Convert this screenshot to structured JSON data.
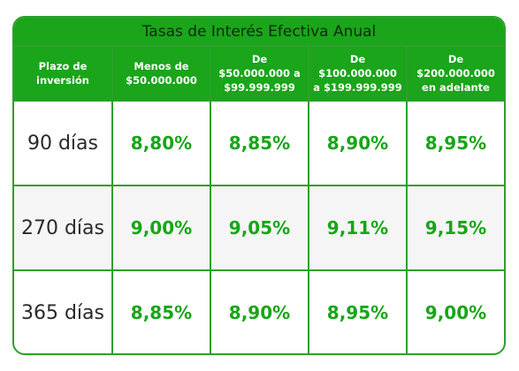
{
  "title": "Tasas de Interés Efectiva Anual",
  "headers": [
    {
      "line1": "Plazo de",
      "line2": "inversión",
      "line3": ""
    },
    {
      "line1": "Menos de",
      "line2": "$50.000.000",
      "line3": ""
    },
    {
      "line1": "De",
      "line2": "$50.000.000 a",
      "line3": "$99.999.999"
    },
    {
      "line1": "De",
      "line2": "$100.000.000",
      "line3": "a $199.999.999"
    },
    {
      "line1": "De",
      "line2": "$200.000.000",
      "line3": "en adelante"
    }
  ],
  "rows": [
    {
      "term": "90 días",
      "rates": [
        "8,80%",
        "8,85%",
        "8,90%",
        "8,95%"
      ]
    },
    {
      "term": "270 días",
      "rates": [
        "9,00%",
        "9,05%",
        "9,11%",
        "9,15%"
      ]
    },
    {
      "term": "365 días",
      "rates": [
        "8,85%",
        "8,90%",
        "8,95%",
        "9,00%"
      ]
    }
  ],
  "colors": {
    "header_bg": "#1aa51a",
    "border": "#2da02d",
    "rate_text": "#17a617",
    "alt_row_bg": "#f5f5f5"
  }
}
